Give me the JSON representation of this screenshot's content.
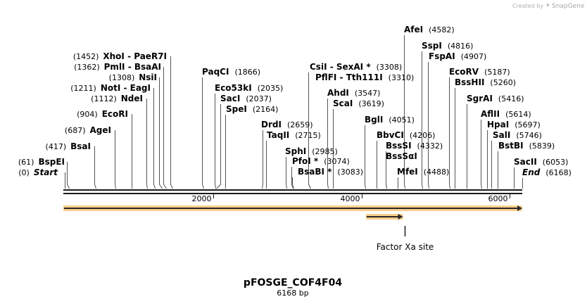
{
  "credit": {
    "prefix": "Created by",
    "brand": "SnapGene"
  },
  "plasmid": {
    "name": "pFOSGE_COF4F04",
    "length_label": "6168 bp",
    "length_bp": 6168
  },
  "axis_ticks": [
    {
      "bp": 2000,
      "label": "2000"
    },
    {
      "bp": 4000,
      "label": "4000"
    },
    {
      "bp": 6000,
      "label": "6000"
    }
  ],
  "sites": [
    {
      "id": "start",
      "left_text": "(0)",
      "name": "Start",
      "style": "italic",
      "bp": 0,
      "side": "left"
    },
    {
      "id": "bspei",
      "left_text": "(61)",
      "name": "BspEI",
      "bp": 61,
      "side": "left"
    },
    {
      "id": "bsai",
      "left_text": "(417)",
      "name": "BsaI",
      "bp": 417,
      "side": "left"
    },
    {
      "id": "agei",
      "left_text": "(687)",
      "name": "AgeI",
      "bp": 687,
      "side": "left"
    },
    {
      "id": "ecori",
      "left_text": "(904)",
      "name": "EcoRI",
      "bp": 904,
      "side": "left"
    },
    {
      "id": "ndei",
      "left_text": "(1112)",
      "name": "NdeI",
      "bp": 1112,
      "side": "left"
    },
    {
      "id": "noti-eagi",
      "left_text": "(1211)",
      "name": "NotI  - EagI",
      "bp": 1211,
      "side": "left"
    },
    {
      "id": "nsii",
      "left_text": "(1308)",
      "name": "NsiI",
      "bp": 1308,
      "side": "left"
    },
    {
      "id": "pmli-bsaai",
      "left_text": "(1362)",
      "name": "PmlI  - BsaAI",
      "bp": 1362,
      "side": "left"
    },
    {
      "id": "xhoi-paer7i",
      "left_text": "(1452)",
      "name": "XhoI  - PaeR7I",
      "bp": 1452,
      "side": "left"
    },
    {
      "id": "paqci",
      "name": "PaqCI",
      "right_text": "(1866)",
      "bp": 1866,
      "side": "right"
    },
    {
      "id": "eco53ki",
      "name": "Eco53kI",
      "right_text": "(2035)",
      "bp": 2035,
      "side": "right"
    },
    {
      "id": "saci",
      "name": "SacI",
      "right_text": "(2037)",
      "bp": 2037,
      "side": "right"
    },
    {
      "id": "spei",
      "name": "SpeI",
      "right_text": "(2164)",
      "bp": 2164,
      "side": "right"
    },
    {
      "id": "drdi",
      "name": "DrdI",
      "right_text": "(2659)",
      "bp": 2659,
      "side": "right"
    },
    {
      "id": "taqii",
      "name": "TaqII",
      "right_text": "(2715)",
      "bp": 2715,
      "side": "right"
    },
    {
      "id": "sphi",
      "name": "SphI",
      "right_text": "(2985)",
      "bp": 2985,
      "side": "right"
    },
    {
      "id": "pfoi",
      "name": "PfoI *",
      "right_text": "(3074)",
      "bp": 3074,
      "side": "right"
    },
    {
      "id": "bsabi",
      "name": "BsaBI *",
      "right_text": "(3083)",
      "bp": 3083,
      "side": "right"
    },
    {
      "id": "csii-sexai",
      "name": "CsiI  - SexAI *",
      "right_text": "(3308)",
      "bp": 3308,
      "side": "right"
    },
    {
      "id": "pflfi-tth111i",
      "name": "PflFI  - Tth111I",
      "right_text": "(3310)",
      "bp": 3310,
      "side": "right"
    },
    {
      "id": "ahdi",
      "name": "AhdI",
      "right_text": "(3547)",
      "bp": 3547,
      "side": "right"
    },
    {
      "id": "scai",
      "name": "ScaI",
      "right_text": "(3619)",
      "bp": 3619,
      "side": "right"
    },
    {
      "id": "bgli",
      "name": "BglI",
      "right_text": "(4051)",
      "bp": 4051,
      "side": "right"
    },
    {
      "id": "bbvci",
      "name": "BbvCI",
      "right_text": "(4206)",
      "bp": 4206,
      "side": "right"
    },
    {
      "id": "bsssi",
      "name": "BssSI",
      "right_text": "(4332)",
      "bp": 4332,
      "side": "right"
    },
    {
      "id": "bsssai",
      "name": "BssSαI",
      "bp": 4332,
      "side": "right"
    },
    {
      "id": "mfei",
      "name": "MfeI",
      "right_text": "(4488)",
      "bp": 4488,
      "side": "right"
    },
    {
      "id": "afei",
      "name": "AfeI",
      "right_text": "(4582)",
      "bp": 4582,
      "side": "right"
    },
    {
      "id": "sspi",
      "name": "SspI",
      "right_text": "(4816)",
      "bp": 4816,
      "side": "right"
    },
    {
      "id": "fspai",
      "name": "FspAI",
      "right_text": "(4907)",
      "bp": 4907,
      "side": "right"
    },
    {
      "id": "ecorv",
      "name": "EcoRV",
      "right_text": "(5187)",
      "bp": 5187,
      "side": "right"
    },
    {
      "id": "bsshii",
      "name": "BssHII",
      "right_text": "(5260)",
      "bp": 5260,
      "side": "right"
    },
    {
      "id": "sgrai",
      "name": "SgrAI",
      "right_text": "(5416)",
      "bp": 5416,
      "side": "right"
    },
    {
      "id": "aflii",
      "name": "AflII",
      "right_text": "(5614)",
      "bp": 5614,
      "side": "right"
    },
    {
      "id": "hpai",
      "name": "HpaI",
      "right_text": "(5697)",
      "bp": 5697,
      "side": "right"
    },
    {
      "id": "sali",
      "name": "SalI",
      "right_text": "(5746)",
      "bp": 5746,
      "side": "right"
    },
    {
      "id": "bstbi",
      "name": "BstBI",
      "right_text": "(5839)",
      "bp": 5839,
      "side": "right"
    },
    {
      "id": "sacii",
      "name": "SacII",
      "right_text": "(6053)",
      "bp": 6053,
      "side": "right"
    },
    {
      "id": "end",
      "name": "End",
      "style": "italic",
      "right_text": "(6168)",
      "bp": 6168,
      "side": "right"
    }
  ],
  "features": [
    {
      "id": "backbone-arrow",
      "label": "",
      "start_bp": 0,
      "end_bp": 6168,
      "color": "#f0a830"
    },
    {
      "id": "factor-xa-arrow",
      "label": "",
      "start_bp": 4060,
      "end_bp": 4560,
      "color": "#f0a830"
    },
    {
      "id": "factor-xa-site",
      "label": "Factor Xa site",
      "bp": 4580
    }
  ],
  "colors": {
    "backbone": "#1a1a1a",
    "lead": "#555555",
    "feature_fill": "#f0a830",
    "feature_border": "#c8781c"
  }
}
